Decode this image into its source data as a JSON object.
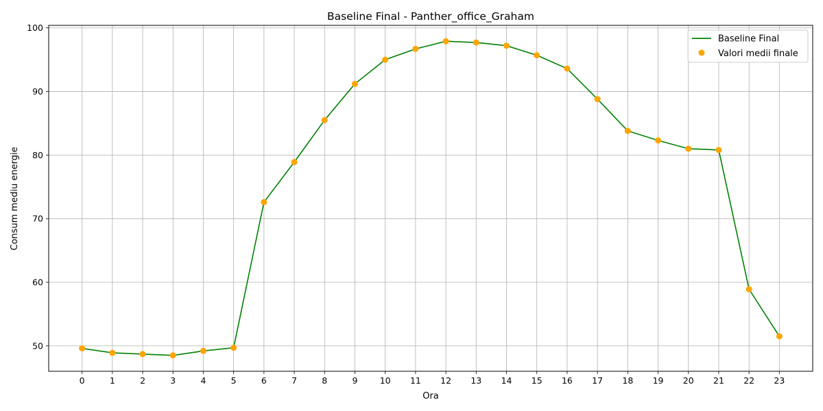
{
  "chart_data": {
    "type": "line",
    "title": "Baseline Final - Panther_office_Graham",
    "xlabel": "Ora",
    "ylabel": "Consum mediu energie",
    "xlim": [
      -1.1,
      24.1
    ],
    "ylim": [
      46.0,
      100.4
    ],
    "x_ticks": [
      0,
      1,
      2,
      3,
      4,
      5,
      6,
      7,
      8,
      9,
      10,
      11,
      12,
      13,
      14,
      15,
      16,
      17,
      18,
      19,
      20,
      21,
      22,
      23
    ],
    "y_ticks": [
      50,
      60,
      70,
      80,
      90,
      100
    ],
    "grid": true,
    "legend_position": "top-right",
    "x": [
      0,
      1,
      2,
      3,
      4,
      5,
      6,
      7,
      8,
      9,
      10,
      11,
      12,
      13,
      14,
      15,
      16,
      17,
      18,
      19,
      20,
      21,
      22,
      23
    ],
    "series": [
      {
        "name": "Baseline Final",
        "kind": "line",
        "color": "#008000",
        "values": [
          49.6,
          48.9,
          48.7,
          48.5,
          49.2,
          49.7,
          72.6,
          78.9,
          85.5,
          91.2,
          95.0,
          96.7,
          97.9,
          97.7,
          97.2,
          95.7,
          93.6,
          88.8,
          83.8,
          82.3,
          81.0,
          80.8,
          58.9,
          51.5
        ]
      },
      {
        "name": "Valori medii finale",
        "kind": "scatter",
        "color": "#ffa500",
        "values": [
          49.6,
          48.9,
          48.7,
          48.5,
          49.2,
          49.7,
          72.6,
          78.9,
          85.5,
          91.2,
          95.0,
          96.7,
          97.9,
          97.7,
          97.2,
          95.7,
          93.6,
          88.8,
          83.8,
          82.3,
          81.0,
          80.8,
          58.9,
          51.5
        ]
      }
    ]
  }
}
